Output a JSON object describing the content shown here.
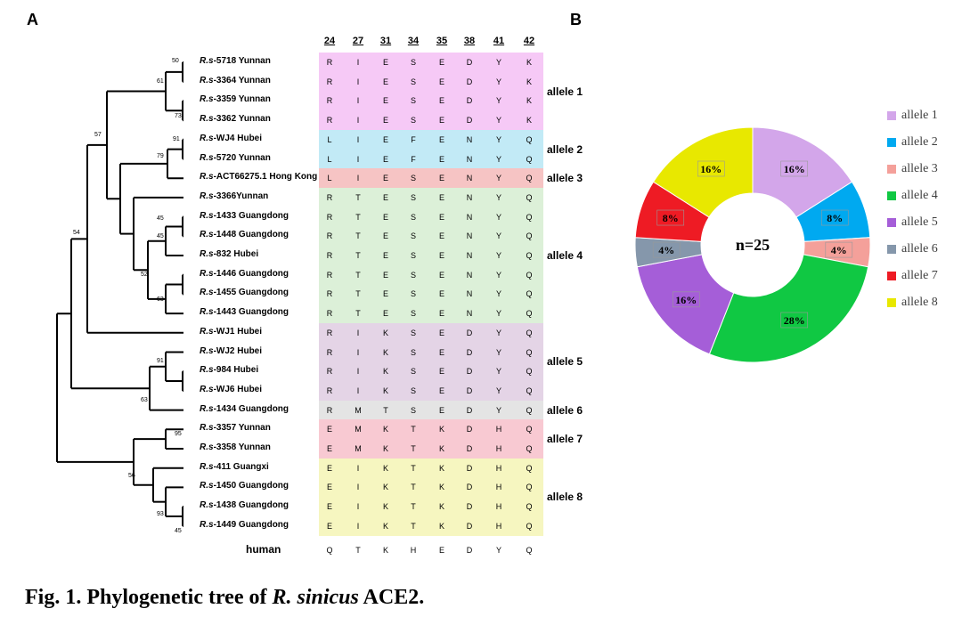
{
  "panels": {
    "a_label": "A",
    "b_label": "B"
  },
  "tree": {
    "leaves": [
      {
        "prefix": "R.s",
        "suffix": "-5718 Yunnan",
        "allele": 1,
        "residues": [
          "R",
          "I",
          "E",
          "S",
          "E",
          "D",
          "Y",
          "K"
        ]
      },
      {
        "prefix": "R.s",
        "suffix": "-3364 Yunnan",
        "allele": 1,
        "residues": [
          "R",
          "I",
          "E",
          "S",
          "E",
          "D",
          "Y",
          "K"
        ]
      },
      {
        "prefix": "R.s",
        "suffix": "-3359 Yunnan",
        "allele": 1,
        "residues": [
          "R",
          "I",
          "E",
          "S",
          "E",
          "D",
          "Y",
          "K"
        ]
      },
      {
        "prefix": "R.s",
        "suffix": "-3362 Yunnan",
        "allele": 1,
        "residues": [
          "R",
          "I",
          "E",
          "S",
          "E",
          "D",
          "Y",
          "K"
        ]
      },
      {
        "prefix": "R.s",
        "suffix": "-WJ4 Hubei",
        "allele": 2,
        "residues": [
          "L",
          "I",
          "E",
          "F",
          "E",
          "N",
          "Y",
          "Q"
        ]
      },
      {
        "prefix": "R.s",
        "suffix": "-5720 Yunnan",
        "allele": 2,
        "residues": [
          "L",
          "I",
          "E",
          "F",
          "E",
          "N",
          "Y",
          "Q"
        ]
      },
      {
        "prefix": "R.s",
        "suffix": "-ACT66275.1 Hong Kong",
        "allele": 3,
        "residues": [
          "L",
          "I",
          "E",
          "S",
          "E",
          "N",
          "Y",
          "Q"
        ]
      },
      {
        "prefix": "R.s",
        "suffix": "-3366Yunnan",
        "allele": 4,
        "residues": [
          "R",
          "T",
          "E",
          "S",
          "E",
          "N",
          "Y",
          "Q"
        ]
      },
      {
        "prefix": "R.s",
        "suffix": "-1433 Guangdong",
        "allele": 4,
        "residues": [
          "R",
          "T",
          "E",
          "S",
          "E",
          "N",
          "Y",
          "Q"
        ]
      },
      {
        "prefix": "R.s",
        "suffix": "-1448 Guangdong",
        "allele": 4,
        "residues": [
          "R",
          "T",
          "E",
          "S",
          "E",
          "N",
          "Y",
          "Q"
        ]
      },
      {
        "prefix": "R.s",
        "suffix": "-832 Hubei",
        "allele": 4,
        "residues": [
          "R",
          "T",
          "E",
          "S",
          "E",
          "N",
          "Y",
          "Q"
        ]
      },
      {
        "prefix": "R.s",
        "suffix": "-1446 Guangdong",
        "allele": 4,
        "residues": [
          "R",
          "T",
          "E",
          "S",
          "E",
          "N",
          "Y",
          "Q"
        ]
      },
      {
        "prefix": "R.s",
        "suffix": "-1455 Guangdong",
        "allele": 4,
        "residues": [
          "R",
          "T",
          "E",
          "S",
          "E",
          "N",
          "Y",
          "Q"
        ]
      },
      {
        "prefix": "R.s",
        "suffix": "-1443 Guangdong",
        "allele": 4,
        "residues": [
          "R",
          "T",
          "E",
          "S",
          "E",
          "N",
          "Y",
          "Q"
        ]
      },
      {
        "prefix": "R.s",
        "suffix": "-WJ1 Hubei",
        "allele": 5,
        "residues": [
          "R",
          "I",
          "K",
          "S",
          "E",
          "D",
          "Y",
          "Q"
        ]
      },
      {
        "prefix": "R.s",
        "suffix": "-WJ2 Hubei",
        "allele": 5,
        "residues": [
          "R",
          "I",
          "K",
          "S",
          "E",
          "D",
          "Y",
          "Q"
        ]
      },
      {
        "prefix": "R.s",
        "suffix": "-984 Hubei",
        "allele": 5,
        "residues": [
          "R",
          "I",
          "K",
          "S",
          "E",
          "D",
          "Y",
          "Q"
        ]
      },
      {
        "prefix": "R.s",
        "suffix": "-WJ6 Hubei",
        "allele": 5,
        "residues": [
          "R",
          "I",
          "K",
          "S",
          "E",
          "D",
          "Y",
          "Q"
        ]
      },
      {
        "prefix": "R.s",
        "suffix": "-1434 Guangdong",
        "allele": 6,
        "residues": [
          "R",
          "M",
          "T",
          "S",
          "E",
          "D",
          "Y",
          "Q"
        ]
      },
      {
        "prefix": "R.s",
        "suffix": "-3357 Yunnan",
        "allele": 7,
        "residues": [
          "E",
          "M",
          "K",
          "T",
          "K",
          "D",
          "H",
          "Q"
        ]
      },
      {
        "prefix": "R.s",
        "suffix": "-3358 Yunnan",
        "allele": 7,
        "residues": [
          "E",
          "M",
          "K",
          "T",
          "K",
          "D",
          "H",
          "Q"
        ]
      },
      {
        "prefix": "R.s",
        "suffix": "-411 Guangxi",
        "allele": 8,
        "residues": [
          "E",
          "I",
          "K",
          "T",
          "K",
          "D",
          "H",
          "Q"
        ]
      },
      {
        "prefix": "R.s",
        "suffix": "-1450 Guangdong",
        "allele": 8,
        "residues": [
          "E",
          "I",
          "K",
          "T",
          "K",
          "D",
          "H",
          "Q"
        ]
      },
      {
        "prefix": "R.s",
        "suffix": "-1438 Guangdong",
        "allele": 8,
        "residues": [
          "E",
          "I",
          "K",
          "T",
          "K",
          "D",
          "H",
          "Q"
        ]
      },
      {
        "prefix": "R.s",
        "suffix": "-1449 Guangdong",
        "allele": 8,
        "residues": [
          "E",
          "I",
          "K",
          "T",
          "K",
          "D",
          "H",
          "Q"
        ]
      }
    ],
    "outgroup": {
      "label": "human",
      "residues": [
        "Q",
        "T",
        "K",
        "H",
        "E",
        "D",
        "Y",
        "Q"
      ]
    },
    "bootstraps": [
      "50",
      "61",
      "73",
      "91",
      "79",
      "57",
      "45",
      "45",
      "52",
      "63",
      "54",
      "91",
      "63",
      "95",
      "56",
      "93",
      "45"
    ]
  },
  "alignment": {
    "positions": [
      "24",
      "27",
      "31",
      "34",
      "35",
      "38",
      "41",
      "42"
    ],
    "alleles": [
      {
        "label": "allele 1",
        "color": "#f6c9f6"
      },
      {
        "label": "allele 2",
        "color": "#c2eaf6"
      },
      {
        "label": "allele 3",
        "color": "#f6c4c4"
      },
      {
        "label": "allele 4",
        "color": "#dcf0d8"
      },
      {
        "label": "allele 5",
        "color": "#e4d4e6"
      },
      {
        "label": "allele 6",
        "color": "#e4e4e4"
      },
      {
        "label": "allele 7",
        "color": "#f8c9d2"
      },
      {
        "label": "allele 8",
        "color": "#f6f6c0"
      }
    ]
  },
  "chart_data": {
    "type": "pie",
    "donut": true,
    "center_label": "n=25",
    "categories": [
      "allele 1",
      "allele 2",
      "allele 3",
      "allele 4",
      "allele 5",
      "allele 6",
      "allele 7",
      "allele 8"
    ],
    "values": [
      16,
      8,
      4,
      28,
      16,
      4,
      8,
      16
    ],
    "value_labels": [
      "16%",
      "8%",
      "4%",
      "28%",
      "16%",
      "4%",
      "8%",
      "16%"
    ],
    "colors": [
      "#d3a6ea",
      "#00a9f0",
      "#f4a09a",
      "#10c843",
      "#a55ed8",
      "#8597ab",
      "#ee1b24",
      "#e8e800"
    ],
    "legend_position": "right"
  },
  "caption": {
    "prefix": "Fig. 1. Phylogenetic tree of ",
    "species": "R. sinicus",
    "suffix": " ACE2."
  }
}
